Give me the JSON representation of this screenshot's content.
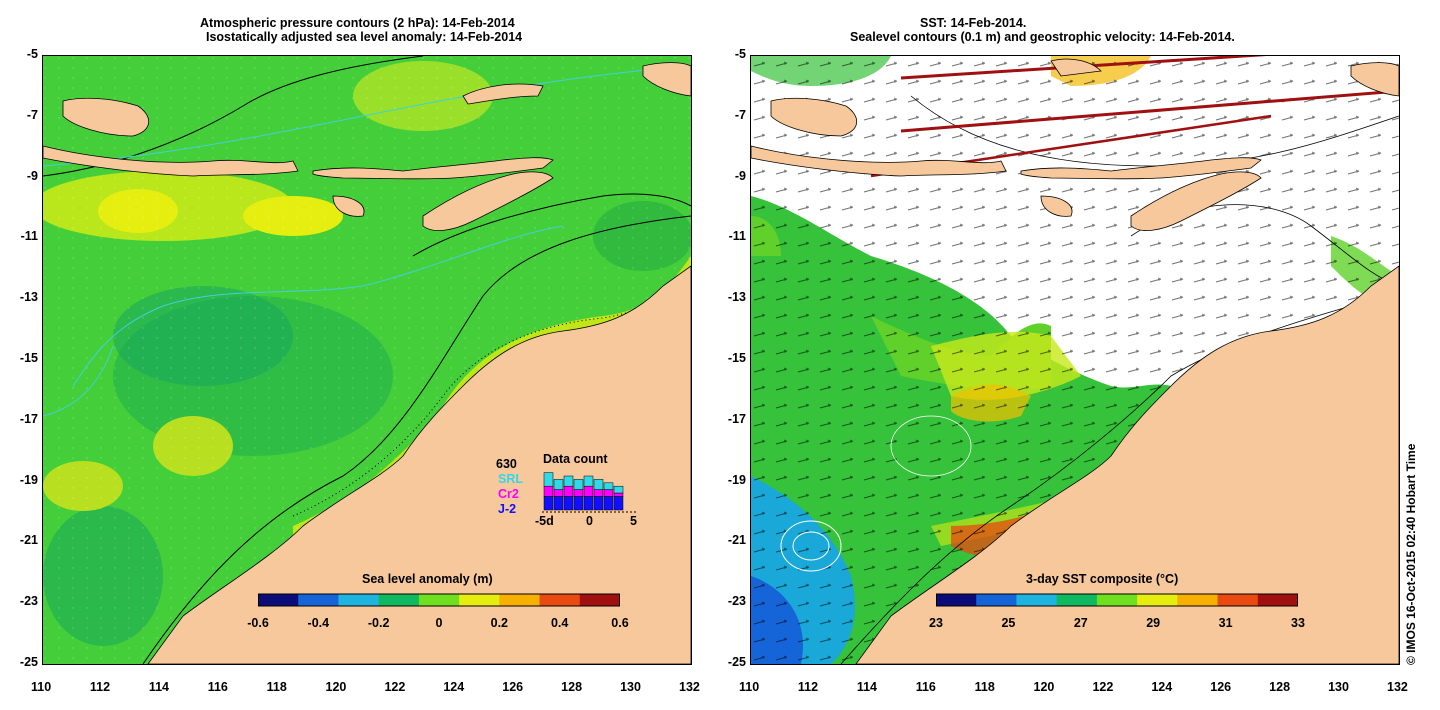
{
  "left_panel": {
    "title_line1": "Atmospheric pressure contours (2 hPa): 14-Feb-2014",
    "title_line2": "Isostatically adjusted sea level anomaly: 14-Feb-2014",
    "colorbar_title": "Sea level anomaly (m)",
    "colorbar_labels": [
      "-0.6",
      "-0.4",
      "-0.2",
      "0",
      "0.2",
      "0.4",
      "0.6"
    ],
    "colorbar_colors": [
      "#0b0b7a",
      "#1565d8",
      "#1fb4e0",
      "#10b860",
      "#6ee020",
      "#e6ee10",
      "#f7b000",
      "#e84a10",
      "#a01010"
    ],
    "data_count": {
      "number": "630",
      "title": "Data count",
      "sources": [
        {
          "label": "SRL",
          "color": "#30d8e8"
        },
        {
          "label": "Cr2",
          "color": "#ff00ff"
        },
        {
          "label": "J-2",
          "color": "#1010ff"
        }
      ],
      "xaxis": [
        "-5d",
        "0",
        "5"
      ],
      "bars": [
        {
          "j2": 4,
          "cr2": 7,
          "srl": 11
        },
        {
          "j2": 4,
          "cr2": 6,
          "srl": 9
        },
        {
          "j2": 4,
          "cr2": 7,
          "srl": 10
        },
        {
          "j2": 4,
          "cr2": 6,
          "srl": 9
        },
        {
          "j2": 4,
          "cr2": 7,
          "srl": 10
        },
        {
          "j2": 4,
          "cr2": 6,
          "srl": 9
        },
        {
          "j2": 4,
          "cr2": 6,
          "srl": 8
        },
        {
          "j2": 4,
          "cr2": 5,
          "srl": 7
        }
      ]
    }
  },
  "right_panel": {
    "title_line1": "SST: 14-Feb-2014.",
    "title_line2": "Sealevel contours (0.1 m) and geostrophic velocity: 14-Feb-2014.",
    "colorbar_title": "3-day SST composite (°C)",
    "colorbar_labels": [
      "23",
      "25",
      "27",
      "29",
      "31",
      "33"
    ],
    "colorbar_colors": [
      "#0b0b7a",
      "#1565d8",
      "#1fb4e0",
      "#10b860",
      "#6ee020",
      "#e6ee10",
      "#f7b000",
      "#e84a10",
      "#a01010"
    ]
  },
  "axes": {
    "x_ticks": [
      "110",
      "112",
      "114",
      "116",
      "118",
      "120",
      "122",
      "124",
      "126",
      "128",
      "130",
      "132"
    ],
    "y_ticks": [
      "-5",
      "-7",
      "-9",
      "-11",
      "-13",
      "-15",
      "-17",
      "-19",
      "-21",
      "-23",
      "-25"
    ]
  },
  "credit": "© IMOS 16-Oct-2015 02:40 Hobart Time",
  "colors": {
    "land": "#f7c89b",
    "ocean_green": "#3fcf3f",
    "contour": "#000000",
    "coast_cyan": "#3fd0e0"
  }
}
